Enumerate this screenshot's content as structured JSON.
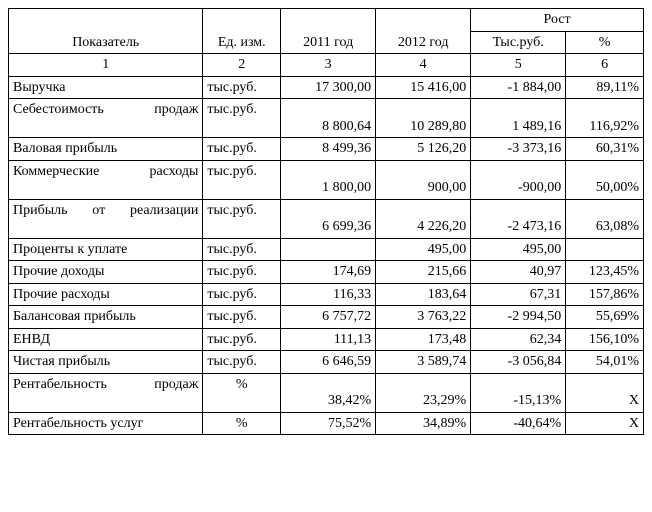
{
  "header": {
    "indicator": "Показатель",
    "unit": "Ед. изм.",
    "y2011": "2011 год",
    "y2012": "2012 год",
    "growth": "Рост",
    "growth_abs": "Тыс.руб.",
    "growth_pct": "%"
  },
  "colnums": {
    "c1": "1",
    "c2": "2",
    "c3": "3",
    "c4": "4",
    "c5": "5",
    "c6": "6"
  },
  "rows": [
    {
      "name": "Выручка",
      "justify": false,
      "unit": "тыс.руб.",
      "y1": "17 300,00",
      "y2": "15 416,00",
      "gabs": "-1 884,00",
      "gpct": "89,11%",
      "tall": false
    },
    {
      "name": "Себестоимость про­даж",
      "justify": true,
      "unit": "тыс.руб.",
      "y1": "8 800,64",
      "y2": "10 289,80",
      "gabs": "1 489,16",
      "gpct": "116,92%",
      "tall": true
    },
    {
      "name": "Валовая прибыль",
      "justify": false,
      "unit": "тыс.руб.",
      "y1": "8 499,36",
      "y2": "5 126,20",
      "gabs": "-3 373,16",
      "gpct": "60,31%",
      "tall": false
    },
    {
      "name": "Коммерческие расхо­ды",
      "justify": true,
      "unit": "тыс.руб.",
      "y1": "1 800,00",
      "y2": "900,00",
      "gabs": "-900,00",
      "gpct": "50,00%",
      "tall": true
    },
    {
      "name": "Прибыль от реализа­ции",
      "justify": true,
      "unit": "тыс.руб.",
      "y1": "6 699,36",
      "y2": "4 226,20",
      "gabs": "-2 473,16",
      "gpct": "63,08%",
      "tall": true
    },
    {
      "name": "Проценты к уплате",
      "justify": false,
      "unit": "тыс.руб.",
      "y1": "",
      "y2": "495,00",
      "gabs": "495,00",
      "gpct": "",
      "tall": false
    },
    {
      "name": "Прочие доходы",
      "justify": false,
      "unit": "тыс.руб.",
      "y1": "174,69",
      "y2": "215,66",
      "gabs": "40,97",
      "gpct": "123,45%",
      "tall": false
    },
    {
      "name": "Прочие расходы",
      "justify": false,
      "unit": "тыс.руб.",
      "y1": "116,33",
      "y2": "183,64",
      "gabs": "67,31",
      "gpct": "157,86%",
      "tall": false
    },
    {
      "name": "Балансовая прибыль",
      "justify": false,
      "unit": "тыс.руб.",
      "y1": "6 757,72",
      "y2": "3 763,22",
      "gabs": "-2 994,50",
      "gpct": "55,69%",
      "tall": false
    },
    {
      "name": "ЕНВД",
      "justify": false,
      "unit": "тыс.руб.",
      "y1": "111,13",
      "y2": "173,48",
      "gabs": "62,34",
      "gpct": "156,10%",
      "tall": false
    },
    {
      "name": "Чистая прибыль",
      "justify": false,
      "unit": "тыс.руб.",
      "y1": "6 646,59",
      "y2": "3 589,74",
      "gabs": "-3 056,84",
      "gpct": "54,01%",
      "tall": false
    },
    {
      "name": "Рентабельность про­даж",
      "justify": true,
      "unit": "%",
      "y1": "38,42%",
      "y2": "23,29%",
      "gabs": "-15,13%",
      "gpct": "X",
      "tall": true
    },
    {
      "name": "Рентабельность услуг",
      "justify": false,
      "unit": "%",
      "y1": "75,52%",
      "y2": "34,89%",
      "gabs": "-40,64%",
      "gpct": "X",
      "tall": false
    }
  ]
}
